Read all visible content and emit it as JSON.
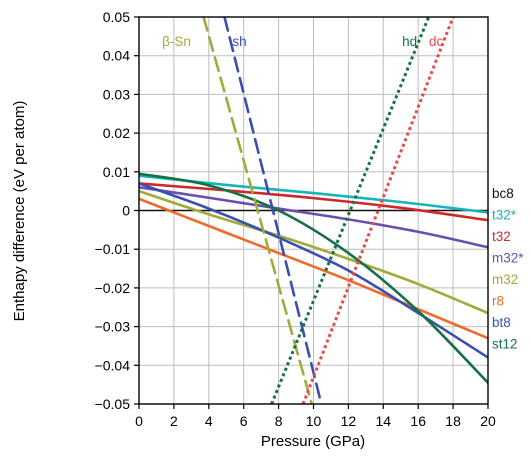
{
  "chart_data": {
    "type": "line",
    "xlabel": "Pressure (GPa)",
    "ylabel": "Enthapy difference (eV per atom)",
    "xlim": [
      0,
      20
    ],
    "ylim": [
      -0.05,
      0.05
    ],
    "xticks": [
      0,
      2,
      4,
      6,
      8,
      10,
      12,
      14,
      16,
      18,
      20
    ],
    "yticks": [
      -0.05,
      -0.04,
      -0.03,
      -0.02,
      -0.01,
      0,
      0.01,
      0.02,
      0.03,
      0.04,
      0.05
    ],
    "ytick_labels": [
      "−0.05",
      "−0.04",
      "−0.03",
      "−0.02",
      "−0.01",
      "0",
      "0.01",
      "0.02",
      "0.03",
      "0.04",
      "0.05"
    ],
    "grid": true,
    "legend": "inline-labels",
    "series": [
      {
        "name": "bc8",
        "color": "#111111",
        "style": "solid",
        "label_position": "right",
        "x": [
          0,
          20
        ],
        "y": [
          0,
          0
        ]
      },
      {
        "name": "t32*",
        "color": "#18b4bc",
        "style": "solid",
        "label_position": "right",
        "x": [
          0,
          5,
          10,
          15,
          20
        ],
        "y": [
          0.009,
          0.0066,
          0.0045,
          0.0022,
          -0.0005
        ]
      },
      {
        "name": "t32",
        "color": "#cc2a2a",
        "style": "solid",
        "label_position": "right",
        "x": [
          0,
          5,
          10,
          15,
          20
        ],
        "y": [
          0.007,
          0.0052,
          0.0032,
          0.0007,
          -0.0025
        ]
      },
      {
        "name": "m32*",
        "color": "#6a4fb0",
        "style": "solid",
        "label_position": "right",
        "x": [
          0,
          4,
          8,
          12,
          16,
          20
        ],
        "y": [
          0.006,
          0.0033,
          0.0005,
          -0.0023,
          -0.0055,
          -0.0095
        ]
      },
      {
        "name": "m32",
        "color": "#a2aa3a",
        "style": "solid",
        "label_position": "right",
        "x": [
          0,
          4,
          8,
          12,
          16,
          20
        ],
        "y": [
          0.005,
          -0.001,
          -0.0065,
          -0.0125,
          -0.019,
          -0.0265
        ]
      },
      {
        "name": "r8",
        "color": "#ee6a28",
        "style": "solid",
        "label_position": "right",
        "x": [
          0,
          4,
          8,
          12,
          16,
          20
        ],
        "y": [
          0.003,
          -0.004,
          -0.011,
          -0.018,
          -0.0255,
          -0.033
        ]
      },
      {
        "name": "bt8",
        "color": "#3a4fb0",
        "style": "solid",
        "label_position": "right",
        "x": [
          0,
          4,
          8,
          12,
          16,
          20
        ],
        "y": [
          0.007,
          0.0005,
          -0.007,
          -0.0155,
          -0.0265,
          -0.038
        ]
      },
      {
        "name": "st12",
        "color": "#157044",
        "style": "solid",
        "label_position": "right",
        "x": [
          0,
          4,
          8,
          12,
          16,
          20
        ],
        "y": [
          0.0095,
          0.0065,
          0.0,
          -0.011,
          -0.026,
          -0.0445
        ]
      },
      {
        "name": "β-Sn",
        "color": "#a2aa3a",
        "style": "dashed",
        "label_position": "top",
        "x": [
          3.7,
          9.9
        ],
        "y": [
          0.05,
          -0.05
        ]
      },
      {
        "name": "sh",
        "color": "#3a4fb0",
        "style": "dashed",
        "label_position": "top",
        "x": [
          4.9,
          10.45
        ],
        "y": [
          0.05,
          -0.05
        ]
      },
      {
        "name": "hd",
        "color": "#157044",
        "style": "dotted",
        "label_position": "top",
        "x": [
          7.6,
          16.6
        ],
        "y": [
          -0.05,
          0.05
        ]
      },
      {
        "name": "dc",
        "color": "#e84a4a",
        "style": "dotted",
        "label_position": "top",
        "x": [
          9.4,
          18.0
        ],
        "y": [
          -0.05,
          0.05
        ]
      }
    ]
  }
}
